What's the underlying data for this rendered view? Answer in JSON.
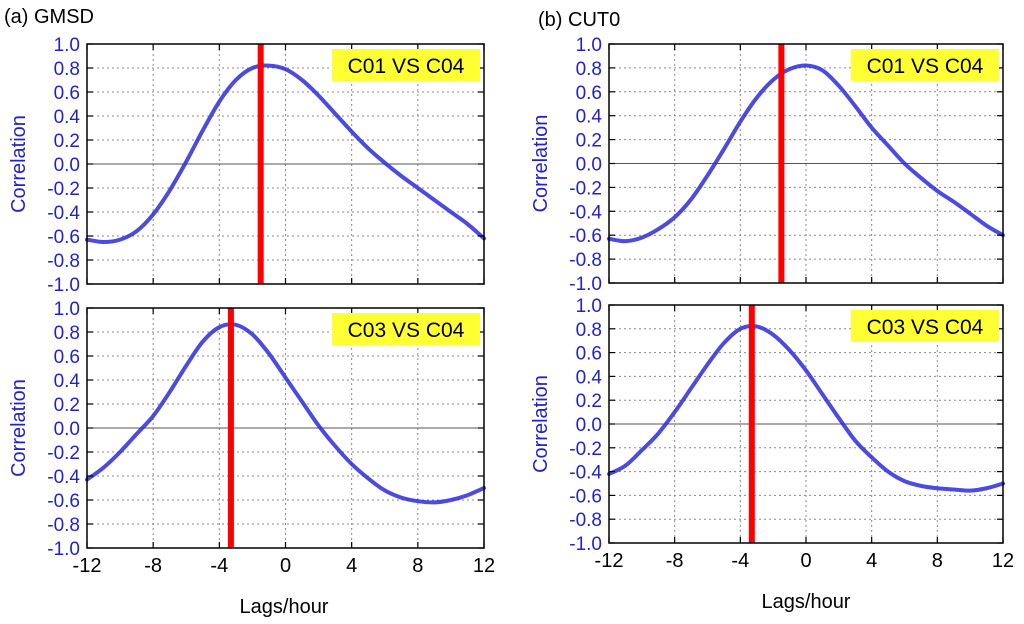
{
  "colors": {
    "series": "#2b2bdc",
    "marker": "#ff0000",
    "tag_bg": "#ffff33",
    "axis_text": "#2222cc"
  },
  "columns": [
    {
      "panel_label": "(a) GMSD",
      "xlabel": "Lags/hour"
    },
    {
      "panel_label": "(b) CUT0",
      "xlabel": "Lags/hour"
    }
  ],
  "chart_data": [
    {
      "type": "line",
      "column": 0,
      "row": 0,
      "title": "C01 VS C04",
      "xlabel": "",
      "ylabel": "Correlation",
      "xlim": [
        -12,
        12
      ],
      "ylim": [
        -1.0,
        1.0
      ],
      "xticks": [
        "-12",
        "-8",
        "-4",
        "0",
        "4",
        "8",
        "12"
      ],
      "yticks": [
        "-1.0",
        "-0.8",
        "-0.6",
        "-0.4",
        "-0.2",
        "0.0",
        "0.2",
        "0.4",
        "0.6",
        "0.8",
        "1.0"
      ],
      "grid": true,
      "marker_lag": -1.5,
      "series": [
        {
          "name": "correlation",
          "x": [
            -12,
            -11,
            -10,
            -9,
            -8,
            -7,
            -6,
            -5,
            -4,
            -3,
            -2,
            -1,
            0,
            1,
            2,
            3,
            4,
            5,
            6,
            7,
            8,
            9,
            10,
            11,
            12
          ],
          "y": [
            -0.63,
            -0.65,
            -0.63,
            -0.56,
            -0.42,
            -0.22,
            0.02,
            0.28,
            0.52,
            0.7,
            0.8,
            0.82,
            0.79,
            0.7,
            0.57,
            0.42,
            0.27,
            0.13,
            0.01,
            -0.1,
            -0.2,
            -0.3,
            -0.4,
            -0.5,
            -0.62
          ]
        }
      ]
    },
    {
      "type": "line",
      "column": 0,
      "row": 1,
      "title": "C03 VS C04",
      "xlabel": "Lags/hour",
      "ylabel": "Correlation",
      "xlim": [
        -12,
        12
      ],
      "ylim": [
        -1.0,
        1.0
      ],
      "xticks": [
        "-12",
        "-8",
        "-4",
        "0",
        "4",
        "8",
        "12"
      ],
      "yticks": [
        "-1.0",
        "-0.8",
        "-0.6",
        "-0.4",
        "-0.2",
        "0.0",
        "0.2",
        "0.4",
        "0.6",
        "0.8",
        "1.0"
      ],
      "grid": true,
      "marker_lag": -3.3,
      "series": [
        {
          "name": "correlation",
          "x": [
            -12,
            -11,
            -10,
            -9,
            -8,
            -7,
            -6,
            -5,
            -4,
            -3,
            -2,
            -1,
            0,
            1,
            2,
            3,
            4,
            5,
            6,
            7,
            8,
            9,
            10,
            11,
            12
          ],
          "y": [
            -0.43,
            -0.33,
            -0.2,
            -0.05,
            0.1,
            0.3,
            0.52,
            0.72,
            0.84,
            0.86,
            0.78,
            0.62,
            0.42,
            0.22,
            0.02,
            -0.15,
            -0.3,
            -0.42,
            -0.52,
            -0.58,
            -0.61,
            -0.62,
            -0.6,
            -0.56,
            -0.5
          ]
        }
      ]
    },
    {
      "type": "line",
      "column": 1,
      "row": 0,
      "title": "C01 VS C04",
      "xlabel": "",
      "ylabel": "Correlation",
      "xlim": [
        -12,
        12
      ],
      "ylim": [
        -1.0,
        1.0
      ],
      "xticks": [
        "-12",
        "-8",
        "-4",
        "0",
        "4",
        "8",
        "12"
      ],
      "yticks": [
        "-1.0",
        "-0.8",
        "-0.6",
        "-0.4",
        "-0.2",
        "0.0",
        "0.2",
        "0.4",
        "0.6",
        "0.8",
        "1.0"
      ],
      "grid": true,
      "marker_lag": -1.5,
      "series": [
        {
          "name": "correlation",
          "x": [
            -12,
            -11,
            -10,
            -9,
            -8,
            -7,
            -6,
            -5,
            -4,
            -3,
            -2,
            -1,
            0,
            1,
            2,
            3,
            4,
            5,
            6,
            7,
            8,
            9,
            10,
            11,
            12
          ],
          "y": [
            -0.63,
            -0.65,
            -0.62,
            -0.55,
            -0.45,
            -0.3,
            -0.1,
            0.12,
            0.35,
            0.55,
            0.7,
            0.79,
            0.82,
            0.78,
            0.65,
            0.48,
            0.3,
            0.15,
            0.0,
            -0.12,
            -0.23,
            -0.32,
            -0.42,
            -0.52,
            -0.6
          ]
        }
      ]
    },
    {
      "type": "line",
      "column": 1,
      "row": 1,
      "title": "C03 VS C04",
      "xlabel": "Lags/hour",
      "ylabel": "Correlation",
      "xlim": [
        -12,
        12
      ],
      "ylim": [
        -1.0,
        1.0
      ],
      "xticks": [
        "-12",
        "-8",
        "-4",
        "0",
        "4",
        "8",
        "12"
      ],
      "yticks": [
        "-1.0",
        "-0.8",
        "-0.6",
        "-0.4",
        "-0.2",
        "0.0",
        "0.2",
        "0.4",
        "0.6",
        "0.8",
        "1.0"
      ],
      "grid": true,
      "marker_lag": -3.3,
      "series": [
        {
          "name": "correlation",
          "x": [
            -12,
            -11,
            -10,
            -9,
            -8,
            -7,
            -6,
            -5,
            -4,
            -3,
            -2,
            -1,
            0,
            1,
            2,
            3,
            4,
            5,
            6,
            7,
            8,
            9,
            10,
            11,
            12
          ],
          "y": [
            -0.42,
            -0.35,
            -0.22,
            -0.08,
            0.1,
            0.3,
            0.5,
            0.68,
            0.8,
            0.82,
            0.75,
            0.62,
            0.45,
            0.25,
            0.05,
            -0.14,
            -0.28,
            -0.4,
            -0.48,
            -0.52,
            -0.54,
            -0.55,
            -0.56,
            -0.54,
            -0.5
          ]
        }
      ]
    }
  ]
}
